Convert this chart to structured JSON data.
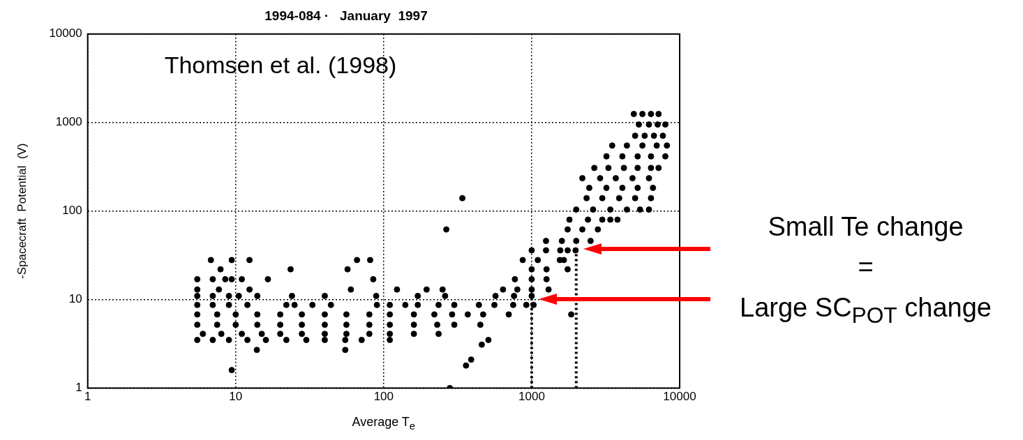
{
  "chart_data": {
    "type": "scatter",
    "title": "1994-084 ·   January  1997",
    "xlabel": "Average T$_{e}$",
    "ylabel": "-Spacecraft  Potential  (V)",
    "annotations": [
      "Thomsen et al. (1998)",
      "Small Te change\n=\nLarge SC$_{POT}$ change"
    ],
    "log": "xy",
    "xlim": [
      1,
      10000
    ],
    "ylim": [
      1,
      10000
    ],
    "xticks": [
      1,
      10,
      100,
      1000,
      10000
    ],
    "yticks": [
      1,
      10,
      100,
      1000,
      10000
    ],
    "grid": true,
    "marker": "circle",
    "legend": false,
    "ref_lines": [
      {
        "axis": "x",
        "value": 1000,
        "color": "#000000",
        "line_style": "dotted"
      },
      {
        "axis": "x",
        "value": 2000,
        "color": "#000000",
        "line_style": "dotted"
      }
    ],
    "series": [
      {
        "color": "#000000",
        "x": [
          5.5,
          7,
          9,
          12,
          16,
          22,
          30,
          40,
          55,
          71,
          110,
          510
        ],
        "values": [
          3.5,
          3.5,
          3.5,
          3.5,
          3.5,
          3.5,
          3.5,
          3.5,
          3.5,
          3.5,
          3.5,
          3.5
        ]
      },
      {
        "color": "#000000",
        "x": [
          6,
          8,
          11,
          15,
          20,
          28,
          40,
          56,
          80,
          110,
          160,
          235
        ],
        "values": [
          4.1,
          4.1,
          4.1,
          4.1,
          4.1,
          4.1,
          4.1,
          4.1,
          4.1,
          4.1,
          4.1,
          4.1
        ]
      },
      {
        "color": "#000000",
        "x": [
          5.5,
          7.5,
          10,
          14,
          20,
          28,
          40,
          56,
          80,
          110,
          160,
          230,
          300,
          450
        ],
        "values": [
          5.2,
          5.2,
          5.2,
          5.2,
          5.2,
          5.2,
          5.2,
          5.2,
          5.2,
          5.2,
          5.2,
          5.2,
          5.2,
          5.2
        ]
      },
      {
        "color": "#000000",
        "x": [
          5.5,
          7.5,
          10,
          14,
          20,
          28,
          40,
          56,
          80,
          110,
          160,
          220,
          290,
          370,
          470,
          700,
          1850
        ],
        "values": [
          6.8,
          6.8,
          6.8,
          6.8,
          6.8,
          6.8,
          6.8,
          6.8,
          6.8,
          6.8,
          6.8,
          6.8,
          6.8,
          6.8,
          6.8,
          6.8,
          6.8
        ]
      },
      {
        "color": "#000000",
        "x": [
          5.5,
          7,
          9,
          12,
          22,
          25,
          33,
          44,
          90,
          110,
          140,
          170,
          235,
          300,
          440,
          560,
          750,
          920,
          1030
        ],
        "values": [
          8.7,
          8.7,
          8.7,
          8.7,
          8.7,
          8.7,
          8.7,
          8.7,
          8.7,
          8.7,
          8.7,
          8.7,
          8.7,
          8.7,
          8.7,
          8.7,
          8.7,
          8.7,
          8.7
        ]
      },
      {
        "color": "#000000",
        "x": [
          5.5,
          7,
          9,
          10.5,
          14,
          24,
          40,
          89,
          170,
          260,
          570,
          760,
          1000
        ],
        "values": [
          11,
          11,
          11,
          11,
          11,
          11,
          11,
          11,
          11,
          11,
          11,
          11,
          11
        ]
      },
      {
        "color": "#000000",
        "x": [
          5.5,
          7.7,
          12.4,
          60,
          123,
          195,
          250,
          640,
          800,
          1000,
          1300
        ],
        "values": [
          13,
          13,
          13,
          13,
          13,
          13,
          13,
          13,
          13,
          13,
          13
        ]
      },
      {
        "color": "#000000",
        "x": [
          5.5,
          7,
          8.5,
          9.4,
          11,
          16.5,
          85,
          770,
          1000,
          1260
        ],
        "values": [
          17,
          17,
          17,
          17,
          17,
          17,
          17,
          17,
          17,
          17
        ]
      },
      {
        "color": "#000000",
        "x": [
          7.9,
          23.5,
          57,
          1000,
          1260,
          1750
        ],
        "values": [
          22,
          22,
          22,
          22,
          22,
          22
        ]
      },
      {
        "color": "#000000",
        "x": [
          6.8,
          9.4,
          12.4,
          66,
          81,
          870,
          1100,
          1550,
          1650
        ],
        "values": [
          28,
          28,
          28,
          28,
          28,
          28,
          28,
          28,
          28
        ]
      },
      {
        "color": "#000000",
        "x": [
          1000,
          1250,
          1560,
          1750,
          1980
        ],
        "values": [
          36,
          36,
          36,
          36,
          36
        ]
      },
      {
        "color": "#000000",
        "x": [
          1250,
          1600,
          2000,
          2500
        ],
        "values": [
          46,
          46,
          46,
          46
        ]
      },
      {
        "color": "#000000",
        "x": [
          265,
          1750,
          2200,
          2800
        ],
        "values": [
          62,
          62,
          62,
          62
        ]
      },
      {
        "color": "#000000",
        "x": [
          1800,
          2400,
          3000,
          3400,
          3800
        ],
        "values": [
          80,
          80,
          80,
          80,
          80
        ]
      },
      {
        "color": "#000000",
        "x": [
          2000,
          2600,
          3400,
          4400,
          5400,
          6200
        ],
        "values": [
          104,
          104,
          104,
          104,
          104,
          104
        ]
      },
      {
        "color": "#000000",
        "x": [
          340,
          2350,
          3000,
          3900,
          5000,
          6400
        ],
        "values": [
          140,
          140,
          140,
          140,
          140,
          140
        ]
      },
      {
        "color": "#000000",
        "x": [
          2450,
          3200,
          4100,
          5200,
          6600
        ],
        "values": [
          183,
          183,
          183,
          183,
          183
        ]
      },
      {
        "color": "#000000",
        "x": [
          2200,
          2900,
          3700,
          4800,
          6200
        ],
        "values": [
          235,
          235,
          235,
          235,
          235
        ]
      },
      {
        "color": "#000000",
        "x": [
          2650,
          3300,
          4200,
          5200,
          6400,
          7200
        ],
        "values": [
          307,
          307,
          307,
          307,
          307,
          307
        ]
      },
      {
        "color": "#000000",
        "x": [
          3200,
          4100,
          5200,
          6400,
          8000
        ],
        "values": [
          415,
          415,
          415,
          415,
          415
        ]
      },
      {
        "color": "#000000",
        "x": [
          3500,
          4400,
          5600,
          7000,
          8200
        ],
        "values": [
          550,
          550,
          550,
          550,
          550
        ]
      },
      {
        "color": "#000000",
        "x": [
          5000,
          5800,
          6700,
          7700
        ],
        "values": [
          710,
          710,
          710,
          710
        ]
      },
      {
        "color": "#000000",
        "x": [
          5300,
          6200,
          7100,
          8000
        ],
        "values": [
          950,
          950,
          950,
          950
        ]
      },
      {
        "color": "#000000",
        "x": [
          4900,
          5600,
          6400,
          7200
        ],
        "values": [
          1250,
          1250,
          1250,
          1250
        ]
      },
      {
        "color": "#000000",
        "x": [
          360,
          390,
          460,
          280,
          13.9,
          55,
          9.4
        ],
        "values": [
          1.8,
          2.1,
          3.1,
          1.0,
          2.7,
          2.7,
          1.6
        ]
      }
    ]
  }
}
